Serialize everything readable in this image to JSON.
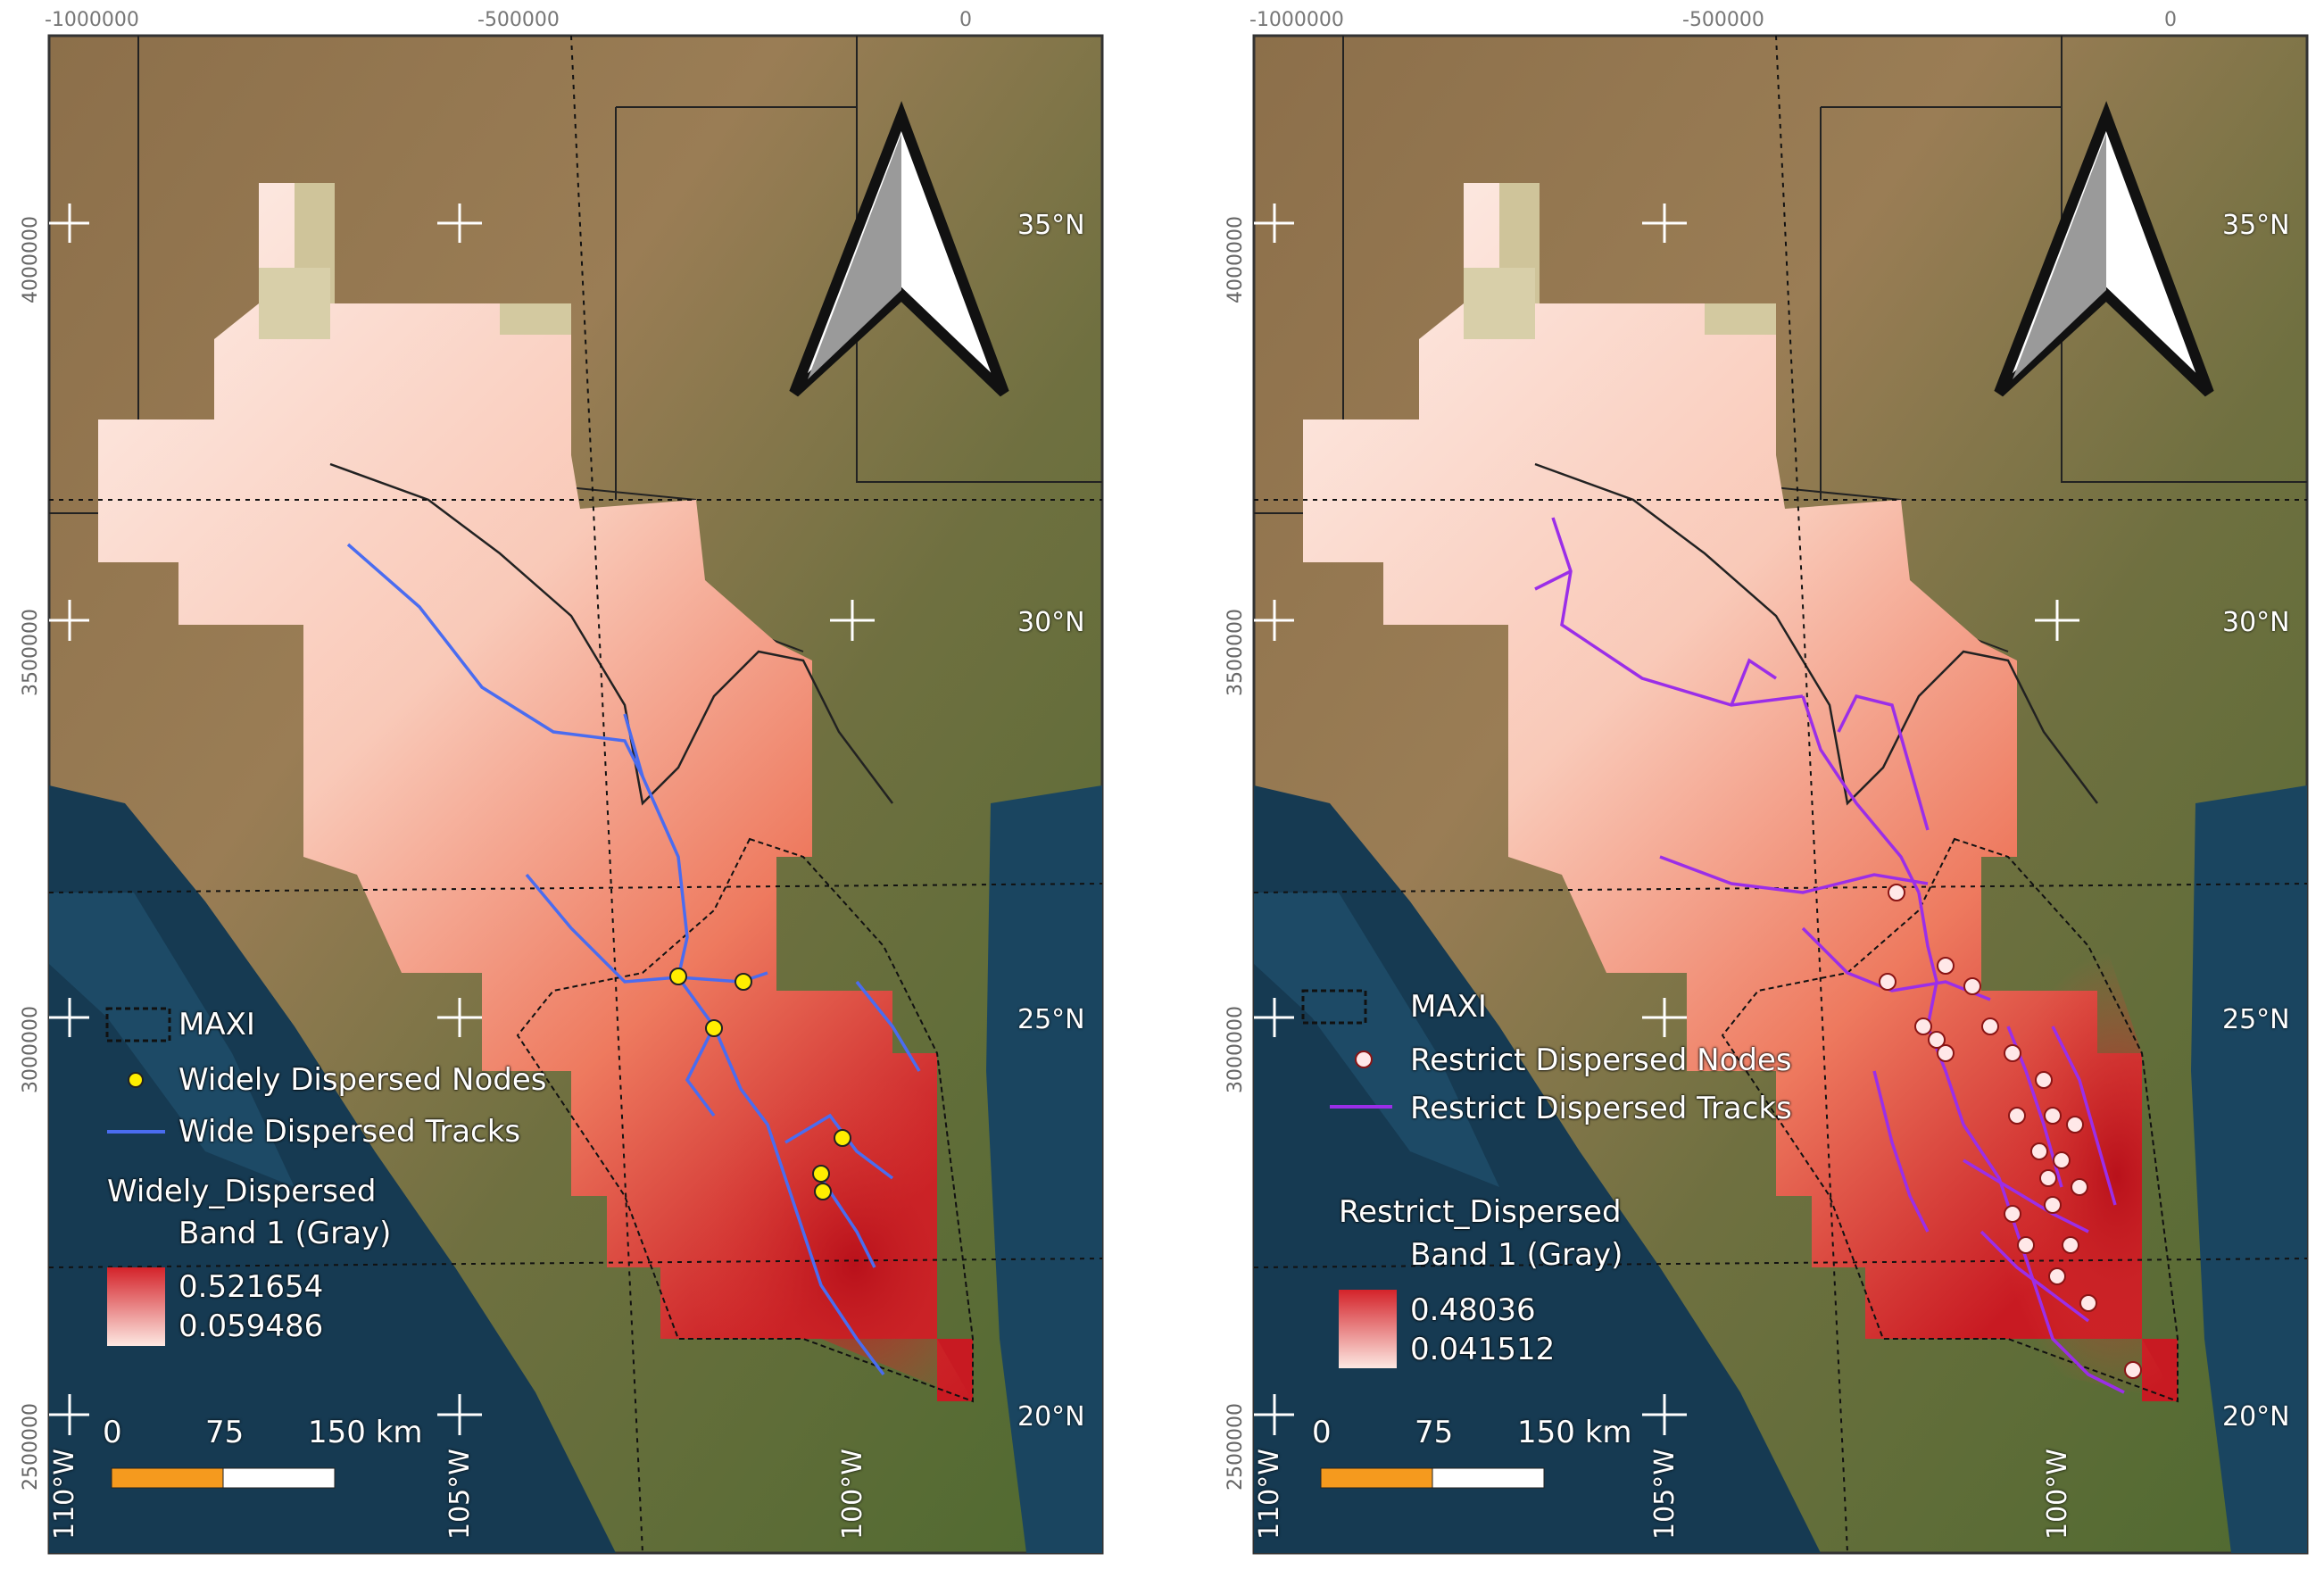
{
  "axes": {
    "x_ticks": [
      "-1000000",
      "-500000",
      "0"
    ],
    "y_ticks": [
      "4000000",
      "3500000",
      "3000000",
      "2500000"
    ],
    "lat_labels": [
      "35°N",
      "30°N",
      "25°N",
      "20°N"
    ],
    "lon_labels": [
      "110°W",
      "105°W",
      "100°W"
    ]
  },
  "panels": [
    {
      "id": "left",
      "legend": {
        "region": "MAXI",
        "nodes": "Widely Dispersed Nodes",
        "tracks": "Wide Dispersed Tracks",
        "layer_title": "Widely_Dispersed",
        "band": "Band 1 (Gray)",
        "max": "0.521654",
        "min": "0.059486"
      },
      "node_color": "#ffee00",
      "track_color": "#4a6cf0"
    },
    {
      "id": "right",
      "legend": {
        "region": "MAXI",
        "nodes": "Restrict Dispersed Nodes",
        "tracks": "Restrict Dispersed Tracks",
        "layer_title": "Restrict_Dispersed",
        "band": "Band 1 (Gray)",
        "max": "0.48036",
        "min": "0.041512"
      },
      "node_color": "#ffe8e8",
      "track_color": "#9b2ee8"
    }
  ],
  "scale_bar": {
    "zero": "0",
    "mid": "75",
    "end": "150 km"
  },
  "colors": {
    "ramp_high": "#d4232a",
    "ramp_low": "#fde8e2",
    "scale_orange": "#f59a1e"
  }
}
